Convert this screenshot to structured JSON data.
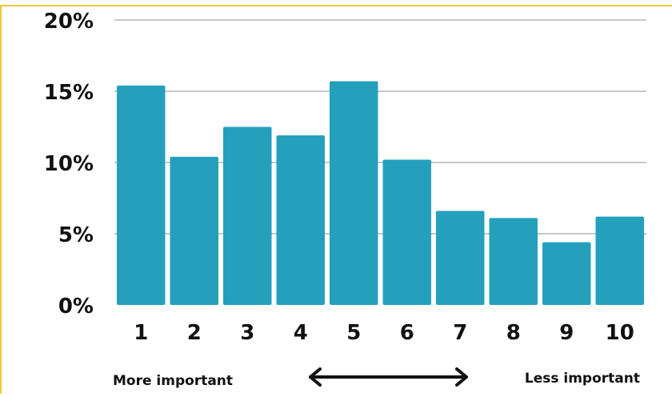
{
  "chart_data": {
    "type": "bar",
    "categories": [
      "1",
      "2",
      "3",
      "4",
      "5",
      "6",
      "7",
      "8",
      "9",
      "10"
    ],
    "values": [
      15.4,
      10.4,
      12.5,
      11.9,
      15.7,
      10.2,
      6.6,
      6.1,
      4.4,
      6.2
    ],
    "y_ticks": [
      "0%",
      "5%",
      "10%",
      "15%",
      "20%"
    ],
    "ylim": [
      0,
      20
    ],
    "grid": true,
    "bar_color": "#24a0bd",
    "grid_color": "#c8c8c8",
    "frame_color": "#f2c832",
    "annotations": {
      "left_label": "More important",
      "right_label": "Less important",
      "arrow": "double-headed"
    }
  }
}
